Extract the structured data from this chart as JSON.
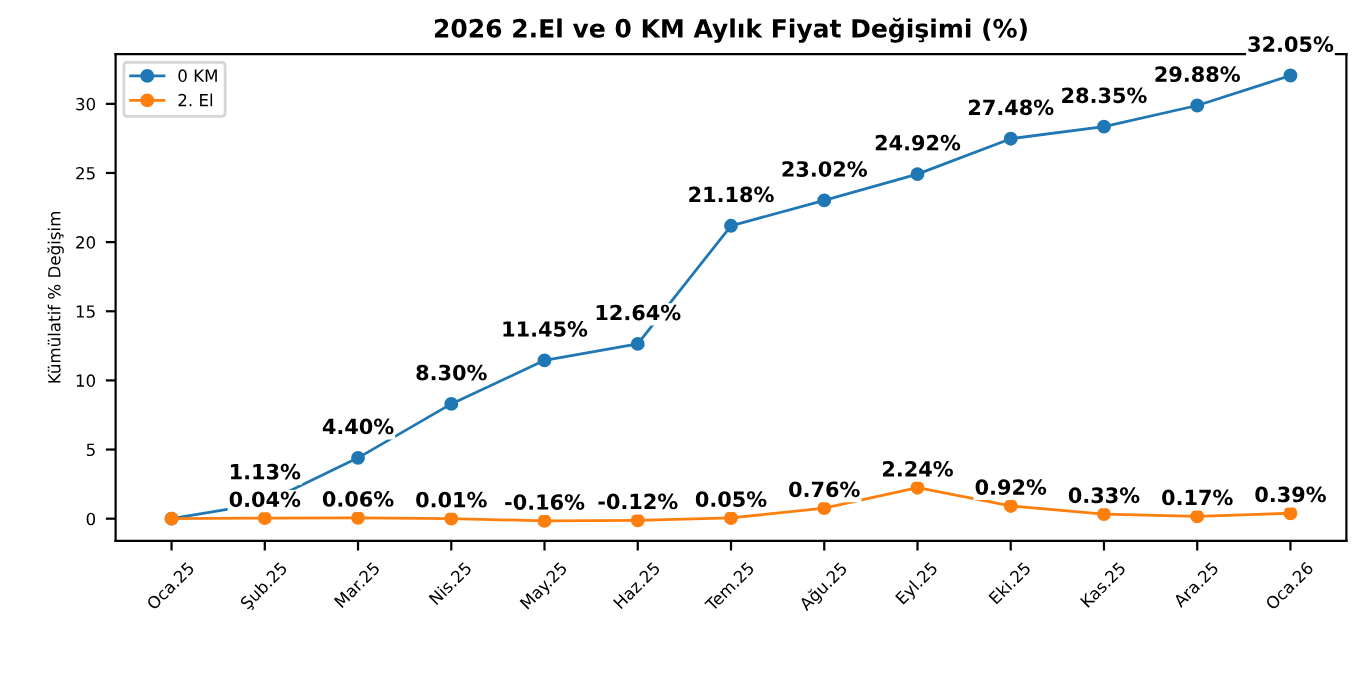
{
  "chart_data": {
    "type": "line",
    "title": "2026 2.El ve 0 KM Aylık Fiyat Değişimi (%)",
    "ylabel": "Kümülatif % Değişim",
    "categories": [
      "Oca.25",
      "Şub.25",
      "Mar.25",
      "Nis.25",
      "May.25",
      "Haz.25",
      "Tem.25",
      "Ağu.25",
      "Eyl.25",
      "Eki.25",
      "Kas.25",
      "Ara.25",
      "Oca.26"
    ],
    "series": [
      {
        "name": "0 KM",
        "color": "#1f77b4",
        "values": [
          0,
          1.13,
          4.4,
          8.3,
          11.45,
          12.64,
          21.18,
          23.02,
          24.92,
          27.48,
          28.35,
          29.88,
          32.05
        ],
        "value_labels": [
          null,
          "1.13%",
          "4.40%",
          "8.30%",
          "11.45%",
          "12.64%",
          "21.18%",
          "23.02%",
          "24.92%",
          "27.48%",
          "28.35%",
          "29.88%",
          "32.05%"
        ]
      },
      {
        "name": "2. El",
        "color": "#ff7f0e",
        "values": [
          0,
          0.04,
          0.06,
          0.01,
          -0.16,
          -0.12,
          0.05,
          0.76,
          2.24,
          0.92,
          0.33,
          0.17,
          0.39
        ],
        "value_labels": [
          null,
          "0.04%",
          "0.06%",
          "0.01%",
          "-0.16%",
          "-0.12%",
          "0.05%",
          "0.76%",
          "2.24%",
          "0.92%",
          "0.33%",
          "0.17%",
          "0.39%"
        ]
      }
    ],
    "ylim": [
      -1.6,
      33.6
    ],
    "yticks": [
      0,
      5,
      10,
      15,
      20,
      25,
      30
    ],
    "marker": "circle",
    "line_style": "solid",
    "legend": "top left",
    "grid": false
  }
}
